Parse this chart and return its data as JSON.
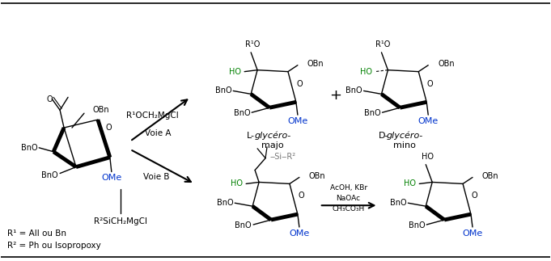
{
  "background_color": "#ffffff",
  "border_color": "#000000",
  "text_black": "#000000",
  "text_blue": "#0033cc",
  "text_green": "#008000",
  "text_gray": "#777777",
  "fig_width": 6.81,
  "fig_height": 3.23,
  "dpi": 100,
  "reagent_A": "R¹OCH₂MgCl",
  "reagent_B": "R²SiCH₂MgCl",
  "voie_A": "Voie A",
  "voie_B": "Voie B",
  "label_R1": "R¹ = All ou Bn",
  "label_R2": "R² = Ph ou Isopropoxy",
  "cond1": "AcOH, KBr",
  "cond2": "NaOAc",
  "cond3": "CH₃CO₃H",
  "plus_sign": "+"
}
